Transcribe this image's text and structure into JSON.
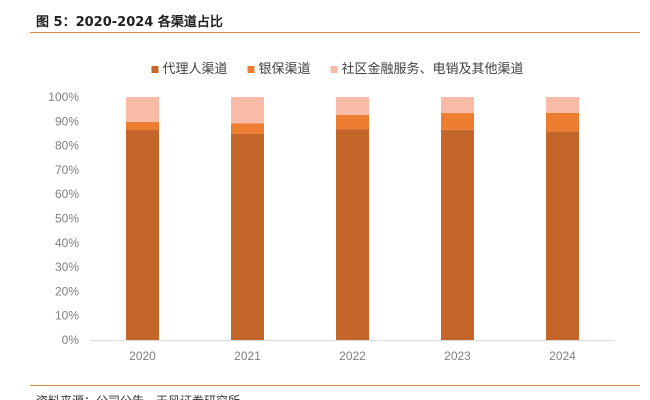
{
  "figure": {
    "title": "图 5：2020-2024 各渠道占比",
    "source": "资料来源：公司公告，天风证券研究所"
  },
  "chart_data": {
    "type": "bar",
    "stacked": true,
    "categories": [
      "2020",
      "2021",
      "2022",
      "2023",
      "2024"
    ],
    "series": [
      {
        "name": "代理人渠道",
        "color": "#c4652a",
        "values": [
          86.4,
          84.8,
          86.8,
          86.5,
          85.9
        ]
      },
      {
        "name": "银保渠道",
        "color": "#ed7d31",
        "values": [
          3.4,
          4.4,
          5.9,
          6.9,
          7.6
        ]
      },
      {
        "name": "社区金融服务、电销及其他渠道",
        "color": "#f8bba8",
        "values": [
          10.2,
          10.8,
          7.3,
          6.6,
          6.5
        ]
      }
    ],
    "y_ticks": [
      "0%",
      "10%",
      "20%",
      "30%",
      "40%",
      "50%",
      "60%",
      "70%",
      "80%",
      "90%",
      "100%"
    ],
    "ylim": [
      0,
      100
    ],
    "legend_position": "top",
    "grid": false
  }
}
